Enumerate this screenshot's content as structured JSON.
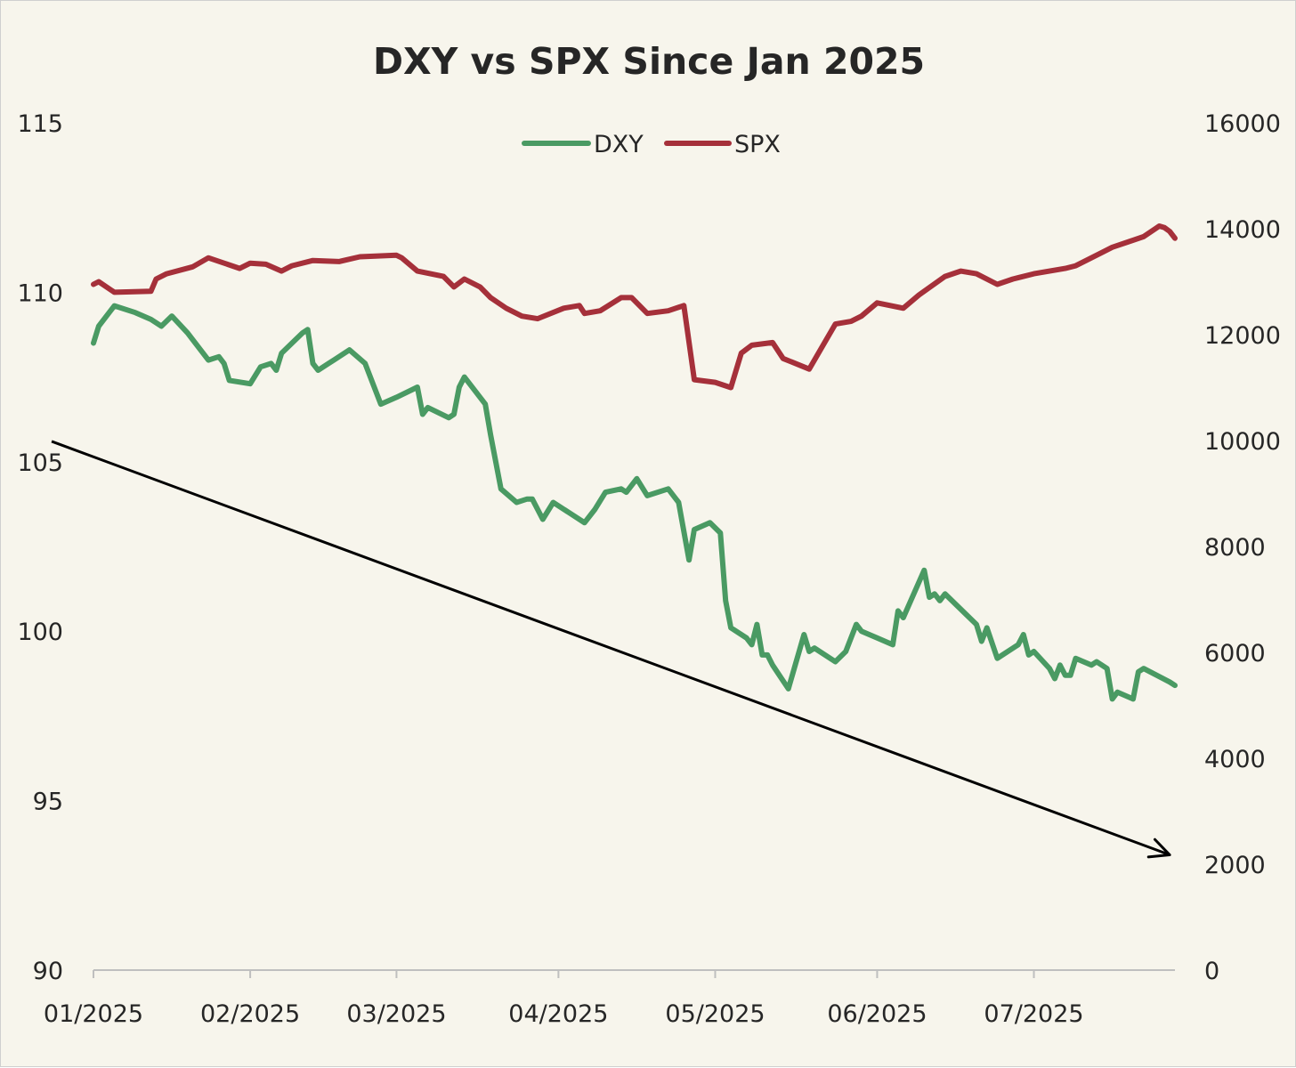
{
  "colors": {
    "background": "#f7f5ec",
    "dxy": "#4a9a63",
    "spx": "#a5303a",
    "axis": "#bfbfbf",
    "arrow": "#000000",
    "text": "#262626"
  },
  "chart_data": {
    "type": "line",
    "title": "DXY vs SPX Since Jan 2025",
    "xlabel": "",
    "ylabel": "",
    "x_range": [
      "2025-01-02",
      "2025-07-28"
    ],
    "x_tick_labels": [
      "01/2025",
      "02/2025",
      "03/2025",
      "04/2025",
      "05/2025",
      "06/2025",
      "07/2025"
    ],
    "x_tick_dates": [
      "2025-01-01",
      "2025-02-01",
      "2025-03-01",
      "2025-04-01",
      "2025-05-01",
      "2025-06-01",
      "2025-07-01"
    ],
    "y_left": {
      "min": 90,
      "max": 115,
      "ticks": [
        "90",
        "95",
        "100",
        "105",
        "110",
        "115"
      ]
    },
    "y_right": {
      "min": 0,
      "max": 16000,
      "ticks": [
        "0",
        "2000",
        "4000",
        "6000",
        "8000",
        "10000",
        "12000",
        "14000",
        "16000"
      ]
    },
    "grid": false,
    "legend": {
      "position": "top-center",
      "entries": [
        "DXY",
        "SPX"
      ]
    },
    "series": [
      {
        "name": "DXY",
        "axis": "left",
        "points": [
          [
            "2025-01-02",
            108.5
          ],
          [
            "2025-01-03",
            109.0
          ],
          [
            "2025-01-06",
            109.6
          ],
          [
            "2025-01-10",
            109.4
          ],
          [
            "2025-01-13",
            109.2
          ],
          [
            "2025-01-15",
            109.0
          ],
          [
            "2025-01-17",
            109.3
          ],
          [
            "2025-01-20",
            108.8
          ],
          [
            "2025-01-24",
            108.0
          ],
          [
            "2025-01-26",
            108.1
          ],
          [
            "2025-01-27",
            107.9
          ],
          [
            "2025-01-28",
            107.4
          ],
          [
            "2025-02-01",
            107.3
          ],
          [
            "2025-02-03",
            107.8
          ],
          [
            "2025-02-05",
            107.9
          ],
          [
            "2025-02-06",
            107.7
          ],
          [
            "2025-02-07",
            108.2
          ],
          [
            "2025-02-11",
            108.8
          ],
          [
            "2025-02-12",
            108.9
          ],
          [
            "2025-02-13",
            107.9
          ],
          [
            "2025-02-14",
            107.7
          ],
          [
            "2025-02-16",
            107.9
          ],
          [
            "2025-02-17",
            108.0
          ],
          [
            "2025-02-20",
            108.3
          ],
          [
            "2025-02-23",
            107.9
          ],
          [
            "2025-02-26",
            106.7
          ],
          [
            "2025-03-01",
            106.9
          ],
          [
            "2025-03-05",
            107.2
          ],
          [
            "2025-03-06",
            106.4
          ],
          [
            "2025-03-07",
            106.6
          ],
          [
            "2025-03-11",
            106.3
          ],
          [
            "2025-03-12",
            106.4
          ],
          [
            "2025-03-13",
            107.2
          ],
          [
            "2025-03-14",
            107.5
          ],
          [
            "2025-03-18",
            106.7
          ],
          [
            "2025-03-19",
            105.8
          ],
          [
            "2025-03-21",
            104.2
          ],
          [
            "2025-03-24",
            103.8
          ],
          [
            "2025-03-26",
            103.9
          ],
          [
            "2025-03-27",
            103.9
          ],
          [
            "2025-03-29",
            103.3
          ],
          [
            "2025-03-31",
            103.8
          ],
          [
            "2025-04-03",
            103.5
          ],
          [
            "2025-04-06",
            103.2
          ],
          [
            "2025-04-08",
            103.6
          ],
          [
            "2025-04-10",
            104.1
          ],
          [
            "2025-04-13",
            104.2
          ],
          [
            "2025-04-14",
            104.1
          ],
          [
            "2025-04-16",
            104.5
          ],
          [
            "2025-04-18",
            104.0
          ],
          [
            "2025-04-22",
            104.2
          ],
          [
            "2025-04-24",
            103.8
          ],
          [
            "2025-04-26",
            102.1
          ],
          [
            "2025-04-27",
            103.0
          ],
          [
            "2025-04-30",
            103.2
          ],
          [
            "2025-05-02",
            102.9
          ],
          [
            "2025-05-03",
            100.9
          ],
          [
            "2025-05-04",
            100.1
          ],
          [
            "2025-05-07",
            99.8
          ],
          [
            "2025-05-08",
            99.6
          ],
          [
            "2025-05-09",
            100.2
          ],
          [
            "2025-05-10",
            99.3
          ],
          [
            "2025-05-11",
            99.3
          ],
          [
            "2025-05-12",
            99.0
          ],
          [
            "2025-05-15",
            98.3
          ],
          [
            "2025-05-18",
            99.9
          ],
          [
            "2025-05-19",
            99.4
          ],
          [
            "2025-05-20",
            99.5
          ],
          [
            "2025-05-24",
            99.1
          ],
          [
            "2025-05-26",
            99.4
          ],
          [
            "2025-05-28",
            100.2
          ],
          [
            "2025-05-29",
            100.0
          ],
          [
            "2025-06-01",
            99.8
          ],
          [
            "2025-06-04",
            99.6
          ],
          [
            "2025-06-05",
            100.6
          ],
          [
            "2025-06-06",
            100.4
          ],
          [
            "2025-06-10",
            101.8
          ],
          [
            "2025-06-11",
            101.0
          ],
          [
            "2025-06-12",
            101.1
          ],
          [
            "2025-06-13",
            100.9
          ],
          [
            "2025-06-14",
            101.1
          ],
          [
            "2025-06-18",
            100.5
          ],
          [
            "2025-06-20",
            100.2
          ],
          [
            "2025-06-21",
            99.7
          ],
          [
            "2025-06-22",
            100.1
          ],
          [
            "2025-06-24",
            99.2
          ],
          [
            "2025-06-28",
            99.6
          ],
          [
            "2025-06-29",
            99.9
          ],
          [
            "2025-06-30",
            99.3
          ],
          [
            "2025-07-01",
            99.4
          ],
          [
            "2025-07-04",
            98.9
          ],
          [
            "2025-07-05",
            98.6
          ],
          [
            "2025-07-06",
            99.0
          ],
          [
            "2025-07-07",
            98.7
          ],
          [
            "2025-07-08",
            98.7
          ],
          [
            "2025-07-09",
            99.2
          ],
          [
            "2025-07-12",
            99.0
          ],
          [
            "2025-07-13",
            99.1
          ],
          [
            "2025-07-15",
            98.9
          ],
          [
            "2025-07-16",
            98.0
          ],
          [
            "2025-07-17",
            98.2
          ],
          [
            "2025-07-20",
            98.0
          ],
          [
            "2025-07-21",
            98.8
          ],
          [
            "2025-07-22",
            98.9
          ],
          [
            "2025-07-27",
            98.5
          ],
          [
            "2025-07-28",
            98.4
          ]
        ]
      },
      {
        "name": "SPX",
        "axis": "right",
        "points": [
          [
            "2025-01-02",
            12950
          ],
          [
            "2025-01-03",
            13000
          ],
          [
            "2025-01-06",
            12800
          ],
          [
            "2025-01-13",
            12820
          ],
          [
            "2025-01-14",
            13050
          ],
          [
            "2025-01-16",
            13150
          ],
          [
            "2025-01-21",
            13280
          ],
          [
            "2025-01-24",
            13450
          ],
          [
            "2025-01-30",
            13250
          ],
          [
            "2025-02-01",
            13350
          ],
          [
            "2025-02-04",
            13330
          ],
          [
            "2025-02-07",
            13200
          ],
          [
            "2025-02-09",
            13300
          ],
          [
            "2025-02-13",
            13400
          ],
          [
            "2025-02-18",
            13380
          ],
          [
            "2025-02-22",
            13470
          ],
          [
            "2025-03-01",
            13500
          ],
          [
            "2025-03-02",
            13450
          ],
          [
            "2025-03-05",
            13200
          ],
          [
            "2025-03-10",
            13100
          ],
          [
            "2025-03-12",
            12900
          ],
          [
            "2025-03-14",
            13050
          ],
          [
            "2025-03-17",
            12900
          ],
          [
            "2025-03-19",
            12700
          ],
          [
            "2025-03-22",
            12500
          ],
          [
            "2025-03-25",
            12350
          ],
          [
            "2025-03-28",
            12300
          ],
          [
            "2025-04-02",
            12500
          ],
          [
            "2025-04-05",
            12550
          ],
          [
            "2025-04-06",
            12400
          ],
          [
            "2025-04-09",
            12450
          ],
          [
            "2025-04-13",
            12700
          ],
          [
            "2025-04-15",
            12700
          ],
          [
            "2025-04-18",
            12400
          ],
          [
            "2025-04-22",
            12450
          ],
          [
            "2025-04-25",
            12550
          ],
          [
            "2025-04-27",
            11150
          ],
          [
            "2025-05-01",
            11100
          ],
          [
            "2025-05-04",
            11000
          ],
          [
            "2025-05-06",
            11650
          ],
          [
            "2025-05-08",
            11800
          ],
          [
            "2025-05-12",
            11850
          ],
          [
            "2025-05-14",
            11550
          ],
          [
            "2025-05-19",
            11350
          ],
          [
            "2025-05-24",
            12200
          ],
          [
            "2025-05-27",
            12250
          ],
          [
            "2025-05-29",
            12350
          ],
          [
            "2025-06-01",
            12600
          ],
          [
            "2025-06-06",
            12500
          ],
          [
            "2025-06-09",
            12750
          ],
          [
            "2025-06-14",
            13100
          ],
          [
            "2025-06-17",
            13200
          ],
          [
            "2025-06-20",
            13150
          ],
          [
            "2025-06-24",
            12950
          ],
          [
            "2025-06-27",
            13050
          ],
          [
            "2025-07-01",
            13150
          ],
          [
            "2025-07-04",
            13200
          ],
          [
            "2025-07-07",
            13250
          ],
          [
            "2025-07-09",
            13300
          ],
          [
            "2025-07-11",
            13400
          ],
          [
            "2025-07-14",
            13550
          ],
          [
            "2025-07-16",
            13650
          ],
          [
            "2025-07-19",
            13750
          ],
          [
            "2025-07-22",
            13850
          ],
          [
            "2025-07-25",
            14050
          ],
          [
            "2025-07-26",
            14020
          ],
          [
            "2025-07-27",
            13950
          ],
          [
            "2025-07-28",
            13820
          ]
        ]
      }
    ],
    "annotations": [
      {
        "type": "arrow",
        "from": [
          "2024-12-25",
          105.6
        ],
        "to": [
          "2025-07-27",
          93.4
        ]
      }
    ]
  }
}
